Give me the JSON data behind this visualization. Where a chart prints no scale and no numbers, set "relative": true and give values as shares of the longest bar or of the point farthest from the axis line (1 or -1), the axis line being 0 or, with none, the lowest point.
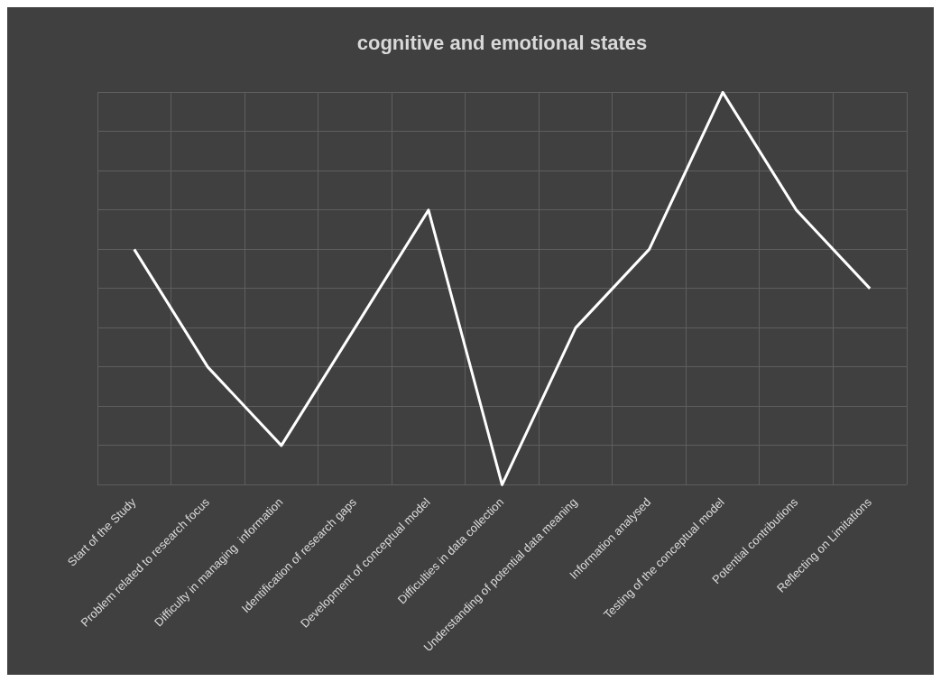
{
  "chart_data": {
    "type": "line",
    "title": "cognitive and emotional states",
    "categories": [
      "Start of the Study",
      "Problem related to research focus",
      "Difficulty in managing  information",
      "Identification of research gaps",
      "Development of conceptual model",
      "Difficulties in data collection",
      "Understanding of potential data meaning",
      "Information analysed",
      "Testing of the conceptual model",
      "Potential contributions",
      "Reflecting on Limitations"
    ],
    "values": [
      0.6,
      0.3,
      0.1,
      0.4,
      0.7,
      0,
      0.4,
      0.6,
      1,
      0.7,
      0.5
    ],
    "color": "#ffffff",
    "relative": true,
    "grid": true,
    "marker": "none",
    "legend": false
  }
}
